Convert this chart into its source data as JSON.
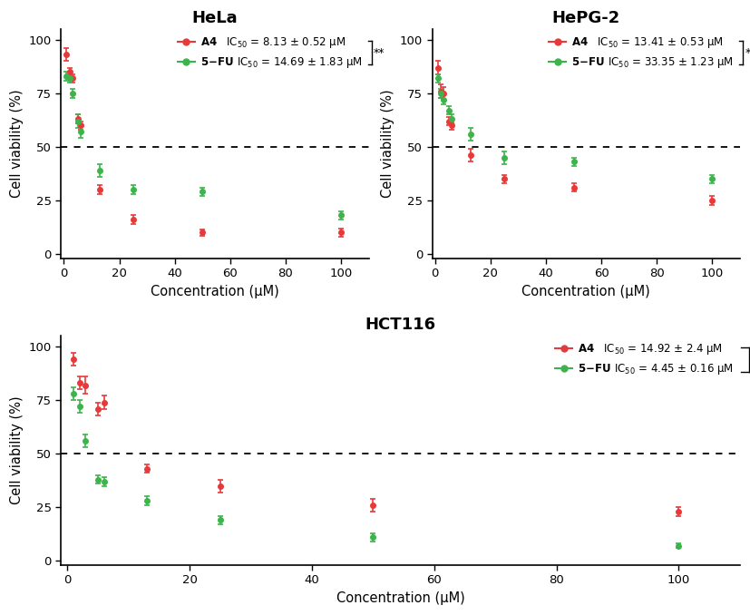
{
  "panels": [
    {
      "title": "HeLa",
      "A4": {
        "x": [
          1,
          2,
          3,
          5,
          6,
          13,
          25,
          50,
          100
        ],
        "y": [
          93,
          85,
          82,
          63,
          60,
          30,
          16,
          10,
          10
        ],
        "yerr": [
          3,
          2,
          2,
          2,
          2,
          2,
          2,
          1.5,
          2
        ],
        "IC50_text": "IC$_{50}$ = 8.13 ± 0.52 μM"
      },
      "FU": {
        "x": [
          1,
          2,
          3,
          5,
          6,
          13,
          25,
          50,
          100
        ],
        "y": [
          83,
          82,
          75,
          62,
          57,
          39,
          30,
          29,
          18
        ],
        "yerr": [
          2,
          2,
          2,
          3,
          3,
          3,
          2,
          2,
          2
        ],
        "IC50_text": "IC$_{50}$ = 14.69 ± 1.83 μM"
      }
    },
    {
      "title": "HePG-2",
      "A4": {
        "x": [
          1,
          2,
          3,
          5,
          6,
          13,
          25,
          50,
          100
        ],
        "y": [
          87,
          76,
          75,
          62,
          60,
          46,
          35,
          31,
          25
        ],
        "yerr": [
          3,
          3,
          3,
          2,
          2,
          3,
          2,
          2,
          2
        ],
        "IC50_text": "IC$_{50}$ = 13.41 ± 0.53 μM"
      },
      "FU": {
        "x": [
          1,
          2,
          3,
          5,
          6,
          13,
          25,
          50,
          100
        ],
        "y": [
          82,
          75,
          72,
          67,
          63,
          56,
          45,
          43,
          35
        ],
        "yerr": [
          2,
          2,
          2,
          2,
          2,
          3,
          3,
          2,
          2
        ],
        "IC50_text": "IC$_{50}$ = 33.35 ± 1.23 μM"
      }
    },
    {
      "title": "HCT116",
      "A4": {
        "x": [
          1,
          2,
          3,
          5,
          6,
          13,
          25,
          50,
          100
        ],
        "y": [
          94,
          83,
          82,
          71,
          74,
          43,
          35,
          26,
          23
        ],
        "yerr": [
          3,
          3,
          4,
          3,
          3,
          2,
          3,
          3,
          2
        ],
        "IC50_text": "IC$_{50}$ = 14.92 ± 2.4 μM"
      },
      "FU": {
        "x": [
          1,
          2,
          3,
          5,
          6,
          13,
          25,
          50,
          100
        ],
        "y": [
          78,
          72,
          56,
          38,
          37,
          28,
          19,
          11,
          7
        ],
        "yerr": [
          3,
          3,
          3,
          2,
          2,
          2,
          2,
          2,
          1
        ],
        "IC50_text": "IC$_{50}$ = 4.45 ± 0.16 μM"
      }
    }
  ],
  "color_A4": "#e8393a",
  "color_FU": "#3cb44b",
  "xlabel": "Concentration (μM)",
  "ylabel": "Cell viability (%)",
  "ylim": [
    -2,
    105
  ],
  "xlim": [
    -1,
    110
  ],
  "dotted_y": 50,
  "xticks": [
    0,
    20,
    40,
    60,
    80,
    100
  ],
  "yticks": [
    0,
    25,
    50,
    75,
    100
  ]
}
